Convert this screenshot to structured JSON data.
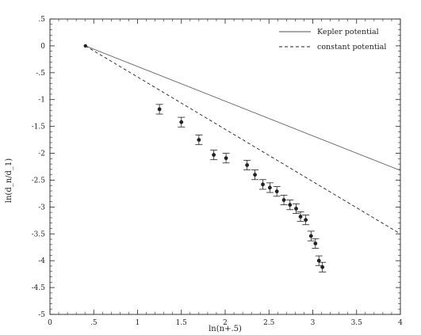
{
  "chart_data": {
    "type": "scatter",
    "xlabel": "ln(n+.5)",
    "ylabel": "ln(d_n/d_1)",
    "xlim": [
      0,
      4
    ],
    "ylim": [
      -5,
      0.5
    ],
    "xticks": [
      {
        "value": 0,
        "label": "0"
      },
      {
        "value": 0.5,
        "label": ".5"
      },
      {
        "value": 1,
        "label": "1"
      },
      {
        "value": 1.5,
        "label": "1.5"
      },
      {
        "value": 2,
        "label": "2"
      },
      {
        "value": 2.5,
        "label": "2.5"
      },
      {
        "value": 3,
        "label": "3"
      },
      {
        "value": 3.5,
        "label": "3.5"
      },
      {
        "value": 4,
        "label": "4"
      }
    ],
    "yticks": [
      {
        "value": 0.5,
        "label": ".5"
      },
      {
        "value": 0,
        "label": "0"
      },
      {
        "value": -0.5,
        "label": "-.5"
      },
      {
        "value": -1,
        "label": "-1"
      },
      {
        "value": -1.5,
        "label": "-1.5"
      },
      {
        "value": -2,
        "label": "-2"
      },
      {
        "value": -2.5,
        "label": "-2.5"
      },
      {
        "value": -3,
        "label": "-3"
      },
      {
        "value": -3.5,
        "label": "-3.5"
      },
      {
        "value": -4,
        "label": "-4"
      },
      {
        "value": -4.5,
        "label": "-4.5"
      },
      {
        "value": -5,
        "label": "-5"
      }
    ],
    "origin_point": {
      "x": 0.405,
      "y": 0
    },
    "lines": [
      {
        "name": "Kepler potential",
        "style": "solid",
        "x": [
          0.405,
          4
        ],
        "y": [
          0,
          -2.32
        ]
      },
      {
        "name": "constant potential",
        "style": "dashed",
        "x": [
          0.405,
          4
        ],
        "y": [
          0,
          -3.5
        ]
      }
    ],
    "series": [
      {
        "name": "",
        "points": [
          {
            "x": 1.25,
            "y": -1.18,
            "err": 0.09
          },
          {
            "x": 1.5,
            "y": -1.42,
            "err": 0.09
          },
          {
            "x": 1.7,
            "y": -1.75,
            "err": 0.09
          },
          {
            "x": 1.87,
            "y": -2.03,
            "err": 0.09
          },
          {
            "x": 2.01,
            "y": -2.09,
            "err": 0.09
          },
          {
            "x": 2.25,
            "y": -2.22,
            "err": 0.09
          },
          {
            "x": 2.34,
            "y": -2.4,
            "err": 0.09
          },
          {
            "x": 2.43,
            "y": -2.58,
            "err": 0.09
          },
          {
            "x": 2.51,
            "y": -2.64,
            "err": 0.09
          },
          {
            "x": 2.59,
            "y": -2.71,
            "err": 0.09
          },
          {
            "x": 2.67,
            "y": -2.87,
            "err": 0.09
          },
          {
            "x": 2.74,
            "y": -2.96,
            "err": 0.09
          },
          {
            "x": 2.81,
            "y": -3.03,
            "err": 0.09
          },
          {
            "x": 2.86,
            "y": -3.18,
            "err": 0.09
          },
          {
            "x": 2.92,
            "y": -3.24,
            "err": 0.09
          },
          {
            "x": 2.98,
            "y": -3.54,
            "err": 0.09
          },
          {
            "x": 3.03,
            "y": -3.68,
            "err": 0.09
          },
          {
            "x": 3.07,
            "y": -4.0,
            "err": 0.09
          },
          {
            "x": 3.11,
            "y": -4.12,
            "err": 0.09
          }
        ]
      }
    ],
    "legend": {
      "position": "top-right",
      "entries": [
        {
          "label": "Kepler potential",
          "style": "solid"
        },
        {
          "label": "constant potential",
          "style": "dashed"
        }
      ]
    },
    "colors": {
      "ink": "#222222",
      "solid_line": "#555555",
      "background": "#ffffff"
    }
  }
}
